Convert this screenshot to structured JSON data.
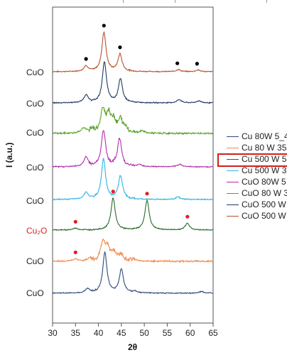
{
  "chart_data": {
    "type": "line",
    "title": "",
    "xlabel": "2θ",
    "ylabel": "I (a.u.)",
    "xlim": [
      30,
      65
    ],
    "xticks": [
      30,
      35,
      40,
      45,
      50,
      55,
      60,
      65
    ],
    "grid": false,
    "legend_position": "right",
    "series": [
      {
        "name": "CuO 500 W",
        "label": "CuO",
        "color": "#b5532e",
        "peaks": [
          [
            37.3,
            0.13
          ],
          [
            41.2,
            0.92
          ],
          [
            44.7,
            0.4
          ],
          [
            57.4,
            0.05
          ],
          [
            61.7,
            0.04
          ]
        ],
        "noise": 0.02
      },
      {
        "name": "CuO 500 W",
        "label": "CuO",
        "color": "#1f3a63",
        "peaks": [
          [
            37.3,
            0.18
          ],
          [
            41.3,
            0.95
          ],
          [
            44.8,
            0.55
          ],
          [
            57.6,
            0.08
          ],
          [
            61.9,
            0.05
          ]
        ],
        "noise": 0.02
      },
      {
        "name": "CuO 80 W 3",
        "label": "CuO",
        "color": "#5aa02c",
        "peaks": [
          [
            36.8,
            0.12
          ],
          [
            38.6,
            0.1
          ],
          [
            41.0,
            0.55
          ],
          [
            42.2,
            0.4
          ],
          [
            43.3,
            0.3
          ],
          [
            44.8,
            0.3
          ],
          [
            46.0,
            0.12
          ],
          [
            49.5,
            0.06
          ]
        ],
        "noise": 0.1
      },
      {
        "name": "CuO 80W 5",
        "label": "CuO",
        "color": "#b32fa8",
        "peaks": [
          [
            37.3,
            0.22
          ],
          [
            41.1,
            0.85
          ],
          [
            44.6,
            0.65
          ],
          [
            49.0,
            0.05
          ],
          [
            57.8,
            0.06
          ]
        ],
        "noise": 0.05
      },
      {
        "name": "Cu 500 W 3",
        "label": "CuO",
        "color": "#2fb4e0",
        "peaks": [
          [
            37.3,
            0.16
          ],
          [
            41.1,
            0.95
          ],
          [
            44.8,
            0.55
          ],
          [
            57.3,
            0.06
          ]
        ],
        "noise": 0.03
      },
      {
        "name": "Cu 500 W 5",
        "label": "Cu2O",
        "color": "#276a2a",
        "peaks": [
          [
            35.0,
            0.04
          ],
          [
            43.2,
            0.75
          ],
          [
            50.6,
            0.7
          ],
          [
            59.4,
            0.16
          ]
        ],
        "noise": 0.02
      },
      {
        "name": "Cu 80 W 35",
        "label": "CuO",
        "color": "#f08a4b",
        "peaks": [
          [
            35.0,
            0.05
          ],
          [
            38.0,
            0.06
          ],
          [
            41.0,
            0.45
          ],
          [
            42.0,
            0.3
          ],
          [
            43.5,
            0.2
          ],
          [
            45.0,
            0.15
          ],
          [
            47.5,
            0.05
          ]
        ],
        "noise": 0.09
      },
      {
        "name": "Cu 80W 5_4",
        "label": "CuO",
        "color": "#2b4a7a",
        "peaks": [
          [
            37.6,
            0.1
          ],
          [
            41.4,
            0.95
          ],
          [
            45.0,
            0.55
          ],
          [
            48.0,
            0.04
          ],
          [
            62.5,
            0.04
          ]
        ],
        "noise": 0.02
      }
    ],
    "markers": {
      "CuO": {
        "color": "#000000",
        "series": 0,
        "x": [
          37.3,
          41.2,
          44.7,
          57.2,
          61.5
        ]
      },
      "Cu2O": {
        "color": "#e02020",
        "series": 5,
        "x": [
          35.0,
          43.2,
          50.6,
          59.4
        ]
      },
      "Cu2O_extra": {
        "color": "#e02020",
        "series": 6,
        "x": [
          35.0
        ]
      }
    }
  },
  "labels": {
    "phase": [
      "CuO",
      "CuO",
      "CuO",
      "CuO",
      "CuO",
      "Cu₂O",
      "CuO",
      "CuO"
    ],
    "phase_colors": [
      "#222222",
      "#222222",
      "#222222",
      "#222222",
      "#222222",
      "#e02020",
      "#222222",
      "#222222"
    ]
  },
  "legend": {
    "items": [
      {
        "label": "Cu 80W 5_4",
        "color": "#2b4a7a"
      },
      {
        "label": "Cu 80 W 35",
        "color": "#f08a4b"
      },
      {
        "label": "Cu 500 W 5",
        "color": "#276a2a"
      },
      {
        "label": "Cu 500 W 3",
        "color": "#2fb4e0"
      },
      {
        "label": "CuO 80W 5",
        "color": "#b32fa8"
      },
      {
        "label": "CuO 80 W 3",
        "color": "#5aa02c"
      },
      {
        "label": "CuO 500 W",
        "color": "#1f3a63"
      },
      {
        "label": "CuO 500 W",
        "color": "#b5532e"
      }
    ],
    "highlighted_index": 2
  }
}
